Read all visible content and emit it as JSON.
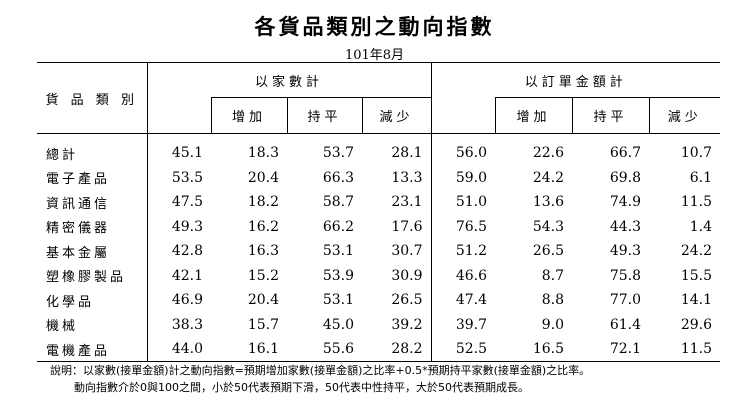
{
  "title": "各貨品類別之動向指數",
  "subtitle": "101年8月",
  "headers": {
    "category": "貨 品 類 別",
    "group_count": "以家數計",
    "group_amount": "以訂單金額計",
    "count_sub": [
      "增加",
      "持平",
      "減少"
    ],
    "amount_sub": [
      "增加",
      "持平",
      "減少"
    ]
  },
  "rows": [
    {
      "name": "總計",
      "c_index": "45.1",
      "c_inc": "18.3",
      "c_flat": "53.7",
      "c_dec": "28.1",
      "a_index": "56.0",
      "a_inc": "22.6",
      "a_flat": "66.7",
      "a_dec": "10.7"
    },
    {
      "name": "電子產品",
      "c_index": "53.5",
      "c_inc": "20.4",
      "c_flat": "66.3",
      "c_dec": "13.3",
      "a_index": "59.0",
      "a_inc": "24.2",
      "a_flat": "69.8",
      "a_dec": "6.1"
    },
    {
      "name": "資訊通信",
      "c_index": "47.5",
      "c_inc": "18.2",
      "c_flat": "58.7",
      "c_dec": "23.1",
      "a_index": "51.0",
      "a_inc": "13.6",
      "a_flat": "74.9",
      "a_dec": "11.5"
    },
    {
      "name": "精密儀器",
      "c_index": "49.3",
      "c_inc": "16.2",
      "c_flat": "66.2",
      "c_dec": "17.6",
      "a_index": "76.5",
      "a_inc": "54.3",
      "a_flat": "44.3",
      "a_dec": "1.4"
    },
    {
      "name": "基本金屬",
      "c_index": "42.8",
      "c_inc": "16.3",
      "c_flat": "53.1",
      "c_dec": "30.7",
      "a_index": "51.2",
      "a_inc": "26.5",
      "a_flat": "49.3",
      "a_dec": "24.2"
    },
    {
      "name": "塑橡膠製品",
      "c_index": "42.1",
      "c_inc": "15.2",
      "c_flat": "53.9",
      "c_dec": "30.9",
      "a_index": "46.6",
      "a_inc": "8.7",
      "a_flat": "75.8",
      "a_dec": "15.5"
    },
    {
      "name": "化學品",
      "c_index": "46.9",
      "c_inc": "20.4",
      "c_flat": "53.1",
      "c_dec": "26.5",
      "a_index": "47.4",
      "a_inc": "8.8",
      "a_flat": "77.0",
      "a_dec": "14.1"
    },
    {
      "name": "機械",
      "c_index": "38.3",
      "c_inc": "15.7",
      "c_flat": "45.0",
      "c_dec": "39.2",
      "a_index": "39.7",
      "a_inc": "9.0",
      "a_flat": "61.4",
      "a_dec": "29.6"
    },
    {
      "name": "電機產品",
      "c_index": "44.0",
      "c_inc": "16.1",
      "c_flat": "55.6",
      "c_dec": "28.2",
      "a_index": "52.5",
      "a_inc": "16.5",
      "a_flat": "72.1",
      "a_dec": "11.5"
    }
  ],
  "notes": {
    "line1": "說明：以家數(接單金額)計之動向指數=預期增加家數(接單金額)之比率+0.5*預期持平家數(接單金額)之比率。",
    "line2": "動向指數介於0與100之間，小於50代表預期下滑，50代表中性持平，大於50代表預期成長。"
  }
}
